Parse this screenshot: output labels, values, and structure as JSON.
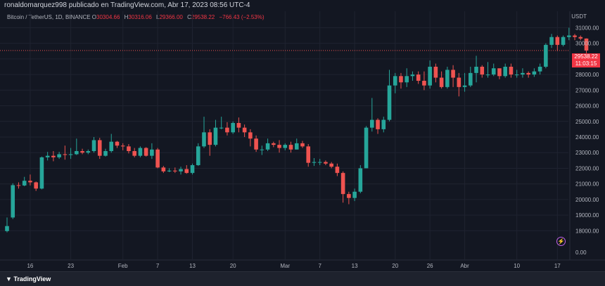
{
  "header": {
    "published_text": "ronaldomarquez998 publicado en TradingView.com, Abr 17, 2023 08:56 UTC-4"
  },
  "legend": {
    "symbol": "Bitcoin / TetherUS, 1D, BINANCE",
    "o_label": "O",
    "o_value": "30304.66",
    "h_label": "H",
    "h_value": "30316.06",
    "l_label": "L",
    "l_value": "29366.00",
    "c_label": "C",
    "c_value": "29538.22",
    "change": "−766.43 (−2.53%)"
  },
  "currency": "USDT",
  "last_price": {
    "value": "29538.22",
    "countdown": "11:03:15"
  },
  "footer": {
    "logo_text": "TradingView"
  },
  "colors": {
    "up": "#26a69a",
    "down": "#ef5350",
    "background": "#131722",
    "grid": "#1f2330"
  },
  "chart_data": {
    "type": "candlestick",
    "y_ticks": [
      "0.00",
      "18000.00",
      "19000.00",
      "20000.00",
      "21000.00",
      "22000.00",
      "23000.00",
      "24000.00",
      "25000.00",
      "26000.00",
      "27000.00",
      "28000.00",
      "29000.00",
      "30000.00",
      "31000.00"
    ],
    "x_ticks": [
      {
        "label": "16",
        "day": 4
      },
      {
        "label": "23",
        "day": 11
      },
      {
        "label": "Feb",
        "day": 20
      },
      {
        "label": "7",
        "day": 26
      },
      {
        "label": "13",
        "day": 32
      },
      {
        "label": "20",
        "day": 39
      },
      {
        "label": "Mar",
        "day": 48
      },
      {
        "label": "7",
        "day": 54
      },
      {
        "label": "13",
        "day": 60
      },
      {
        "label": "20",
        "day": 67
      },
      {
        "label": "26",
        "day": 73
      },
      {
        "label": "Abr",
        "day": 79
      },
      {
        "label": "10",
        "day": 88
      },
      {
        "label": "17",
        "day": 95
      }
    ],
    "candles": [
      [
        17979,
        18300,
        17900,
        18850
      ],
      [
        18850,
        20920,
        18750,
        21040
      ],
      [
        20920,
        20900,
        20700,
        21100
      ],
      [
        20900,
        21200,
        20850,
        21450
      ],
      [
        21200,
        21100,
        20900,
        21600
      ],
      [
        21100,
        20700,
        20550,
        21150
      ],
      [
        20700,
        22700,
        20650,
        22750
      ],
      [
        22700,
        22800,
        22500,
        23050
      ],
      [
        22800,
        22700,
        22450,
        23100
      ],
      [
        22700,
        22900,
        22600,
        23050
      ],
      [
        22900,
        22850,
        22550,
        23450
      ],
      [
        22850,
        22900,
        22600,
        23300
      ],
      [
        22900,
        23100,
        22850,
        23900
      ],
      [
        23100,
        23000,
        22900,
        23250
      ],
      [
        23000,
        23100,
        22900,
        23200
      ],
      [
        23100,
        23800,
        23000,
        24000
      ],
      [
        23800,
        22800,
        22600,
        23950
      ],
      [
        22800,
        23100,
        22750,
        23250
      ],
      [
        23100,
        23700,
        23000,
        24200
      ],
      [
        23700,
        23450,
        23300,
        23750
      ],
      [
        23450,
        23400,
        23150,
        23600
      ],
      [
        23400,
        23100,
        22950,
        23550
      ],
      [
        23100,
        22800,
        22700,
        23300
      ],
      [
        22800,
        23300,
        22700,
        23400
      ],
      [
        23300,
        22800,
        22750,
        23350
      ],
      [
        22800,
        23200,
        22600,
        23600
      ],
      [
        23200,
        22050,
        22000,
        23300
      ],
      [
        22050,
        21800,
        21700,
        22150
      ],
      [
        21800,
        21850,
        21750,
        22000
      ],
      [
        21850,
        21800,
        21700,
        22050
      ],
      [
        21800,
        21950,
        21600,
        22100
      ],
      [
        21950,
        21700,
        21650,
        22200
      ],
      [
        21700,
        22200,
        21600,
        22300
      ],
      [
        22200,
        23400,
        22150,
        23600
      ],
      [
        23400,
        24300,
        23300,
        25300
      ],
      [
        24300,
        23500,
        22800,
        24500
      ],
      [
        23500,
        24600,
        23400,
        25100
      ],
      [
        24600,
        24600,
        24500,
        25300
      ],
      [
        24600,
        24300,
        24100,
        24950
      ],
      [
        24300,
        24900,
        24200,
        25000
      ],
      [
        24900,
        24600,
        24300,
        25250
      ],
      [
        24600,
        24300,
        24000,
        24800
      ],
      [
        24300,
        23900,
        23400,
        24500
      ],
      [
        23900,
        23200,
        23050,
        24100
      ],
      [
        23200,
        23200,
        22850,
        23450
      ],
      [
        23200,
        23600,
        23100,
        23900
      ],
      [
        23600,
        23500,
        23350,
        23700
      ],
      [
        23500,
        23300,
        23000,
        23800
      ],
      [
        23300,
        23500,
        23150,
        23600
      ],
      [
        23500,
        23200,
        23000,
        23700
      ],
      [
        23200,
        23600,
        23200,
        23900
      ],
      [
        23600,
        23400,
        23300,
        23750
      ],
      [
        23400,
        22350,
        22100,
        23550
      ],
      [
        22350,
        22400,
        22150,
        22650
      ],
      [
        22400,
        22400,
        22200,
        22600
      ],
      [
        22400,
        22300,
        22200,
        22500
      ],
      [
        22300,
        22100,
        22000,
        22400
      ],
      [
        22100,
        21700,
        21500,
        22300
      ],
      [
        21700,
        20350,
        19800,
        21800
      ],
      [
        20350,
        20100,
        19700,
        20500
      ],
      [
        20100,
        20500,
        19900,
        20700
      ],
      [
        20500,
        22000,
        20400,
        22200
      ],
      [
        22000,
        24600,
        22000,
        24700
      ],
      [
        24600,
        25100,
        24350,
        26500
      ],
      [
        25100,
        24500,
        24200,
        25200
      ],
      [
        24500,
        25100,
        24300,
        25300
      ],
      [
        25100,
        27300,
        25000,
        28300
      ],
      [
        27300,
        27900,
        26800,
        28100
      ],
      [
        27900,
        27500,
        27100,
        28100
      ],
      [
        27500,
        27900,
        27200,
        28400
      ],
      [
        27900,
        28000,
        27600,
        28200
      ],
      [
        28000,
        27600,
        27400,
        28200
      ],
      [
        27600,
        27300,
        27000,
        28200
      ],
      [
        27300,
        28500,
        27100,
        28900
      ],
      [
        28500,
        27800,
        27500,
        28700
      ],
      [
        27800,
        27200,
        27100,
        28200
      ],
      [
        27200,
        28300,
        27100,
        28500
      ],
      [
        28300,
        27800,
        27200,
        28600
      ],
      [
        27800,
        27200,
        26600,
        28100
      ],
      [
        27200,
        27300,
        26900,
        28100
      ],
      [
        27300,
        28100,
        27200,
        28500
      ],
      [
        28100,
        28500,
        27500,
        29200
      ],
      [
        28500,
        28000,
        27800,
        28600
      ],
      [
        28000,
        28000,
        27800,
        28800
      ],
      [
        28000,
        28400,
        27900,
        28700
      ],
      [
        28400,
        27900,
        27700,
        28300
      ],
      [
        27900,
        28500,
        27800,
        28700
      ],
      [
        28500,
        28000,
        27800,
        28700
      ],
      [
        28000,
        28000,
        27800,
        28300
      ],
      [
        28000,
        28100,
        27800,
        28400
      ],
      [
        28100,
        28000,
        27800,
        28200
      ],
      [
        28000,
        28200,
        27850,
        28400
      ],
      [
        28200,
        28500,
        28000,
        28700
      ],
      [
        28500,
        29900,
        28400,
        30000
      ],
      [
        29900,
        30400,
        29700,
        30600
      ],
      [
        30400,
        29900,
        29500,
        30500
      ],
      [
        29900,
        30400,
        29800,
        30500
      ],
      [
        30400,
        30500,
        30200,
        31000
      ],
      [
        30500,
        30400,
        30200,
        30600
      ],
      [
        30400,
        30305,
        30200,
        30500
      ],
      [
        30305,
        29538,
        29366,
        30316
      ]
    ]
  }
}
